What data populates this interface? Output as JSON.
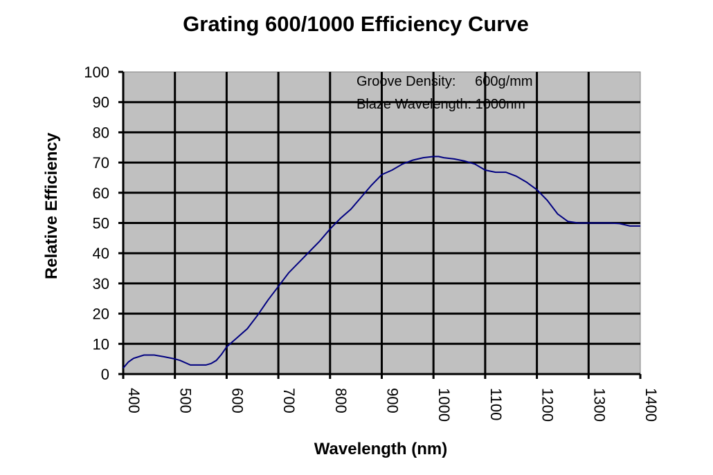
{
  "chart_data": {
    "type": "line",
    "title": "Grating 600/1000 Efficiency Curve",
    "xlabel": "Wavelength (nm)",
    "ylabel": "Relative Efficiency",
    "xlim": [
      400,
      1400
    ],
    "ylim": [
      0,
      100
    ],
    "x_ticks": [
      400,
      500,
      600,
      700,
      800,
      900,
      1000,
      1100,
      1200,
      1300,
      1400
    ],
    "y_ticks": [
      0,
      10,
      20,
      30,
      40,
      50,
      60,
      70,
      80,
      90,
      100
    ],
    "grid": true,
    "background_color": "#c0c0c0",
    "annotations": [
      "Groove Density:     600g/mm",
      "Blaze Wavelength: 1000nm"
    ],
    "series": [
      {
        "name": "Efficiency",
        "color": "#000080",
        "points": [
          [
            400,
            2
          ],
          [
            410,
            4
          ],
          [
            420,
            5.2
          ],
          [
            440,
            6.3
          ],
          [
            460,
            6.3
          ],
          [
            480,
            5.7
          ],
          [
            500,
            5
          ],
          [
            510,
            4.5
          ],
          [
            530,
            3
          ],
          [
            560,
            3
          ],
          [
            570,
            3.5
          ],
          [
            580,
            4.5
          ],
          [
            590,
            6.5
          ],
          [
            600,
            9
          ],
          [
            620,
            12
          ],
          [
            640,
            15
          ],
          [
            660,
            19.5
          ],
          [
            680,
            24.5
          ],
          [
            700,
            29
          ],
          [
            720,
            33.5
          ],
          [
            740,
            37
          ],
          [
            760,
            40.5
          ],
          [
            780,
            44
          ],
          [
            800,
            48
          ],
          [
            820,
            51.5
          ],
          [
            840,
            54.5
          ],
          [
            860,
            58.5
          ],
          [
            880,
            62.5
          ],
          [
            900,
            66
          ],
          [
            920,
            67.5
          ],
          [
            940,
            69.5
          ],
          [
            960,
            70.8
          ],
          [
            980,
            71.6
          ],
          [
            1000,
            72
          ],
          [
            1010,
            72
          ],
          [
            1020,
            71.6
          ],
          [
            1040,
            71.2
          ],
          [
            1060,
            70.5
          ],
          [
            1080,
            69.5
          ],
          [
            1100,
            67.5
          ],
          [
            1120,
            66.8
          ],
          [
            1140,
            66.8
          ],
          [
            1160,
            65.5
          ],
          [
            1180,
            63.5
          ],
          [
            1200,
            61
          ],
          [
            1220,
            57.5
          ],
          [
            1240,
            53
          ],
          [
            1260,
            50.5
          ],
          [
            1280,
            50
          ],
          [
            1300,
            50
          ],
          [
            1340,
            50
          ],
          [
            1360,
            49.8
          ],
          [
            1380,
            49
          ],
          [
            1400,
            49
          ]
        ]
      }
    ]
  }
}
